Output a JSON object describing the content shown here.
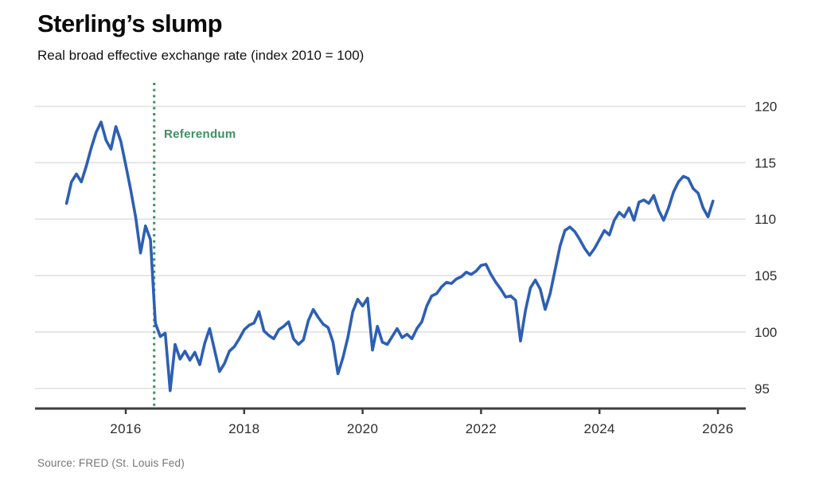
{
  "header": {
    "title": "Sterling’s slump",
    "subtitle": "Real broad effective exchange rate (index 2010 = 100)"
  },
  "source": {
    "text": "Source: FRED (St. Louis Fed)"
  },
  "chart_data": {
    "type": "line",
    "title": "Sterling’s slump",
    "subtitle": "Real broad effective exchange rate (index 2010 = 100)",
    "frequency": "monthly",
    "start_year": 2015,
    "start_month": 1,
    "end_year": 2025,
    "end_month": 12,
    "series": [
      {
        "name": "Real broad effective exchange rate (index 2010 = 100)",
        "values": [
          111.4,
          113.3,
          114.0,
          113.3,
          114.7,
          116.3,
          117.7,
          118.6,
          117.0,
          116.2,
          118.2,
          116.9,
          114.8,
          112.6,
          110.2,
          107.0,
          109.4,
          108.2,
          100.8,
          99.6,
          99.9,
          94.8,
          98.9,
          97.6,
          98.3,
          97.5,
          98.2,
          97.1,
          99.0,
          100.3,
          98.4,
          96.5,
          97.2,
          98.3,
          98.7,
          99.4,
          100.2,
          100.6,
          100.8,
          101.8,
          100.1,
          99.7,
          99.4,
          100.2,
          100.5,
          100.9,
          99.4,
          98.9,
          99.3,
          101.0,
          102.0,
          101.3,
          100.7,
          100.4,
          99.1,
          96.3,
          97.7,
          99.5,
          101.8,
          102.9,
          102.3,
          103.0,
          98.4,
          100.5,
          99.1,
          98.9,
          99.6,
          100.3,
          99.5,
          99.8,
          99.4,
          100.3,
          100.9,
          102.3,
          103.2,
          103.4,
          104.0,
          104.4,
          104.3,
          104.7,
          104.9,
          105.3,
          105.1,
          105.4,
          105.9,
          106.0,
          105.1,
          104.4,
          103.8,
          103.1,
          103.2,
          102.8,
          99.2,
          101.9,
          103.9,
          104.6,
          103.8,
          102.0,
          103.4,
          105.5,
          107.6,
          109.0,
          109.3,
          108.9,
          108.2,
          107.4,
          106.8,
          107.4,
          108.2,
          109.0,
          108.6,
          109.9,
          110.6,
          110.2,
          111.0,
          109.9,
          111.5,
          111.7,
          111.4,
          112.1,
          110.8,
          109.9,
          111.0,
          112.4,
          113.3,
          113.8,
          113.6,
          112.7,
          112.3,
          111.0,
          110.2,
          111.6
        ]
      }
    ],
    "x_ticks": [
      2016,
      2018,
      2020,
      2022,
      2024,
      2026
    ],
    "y_ticks": [
      95,
      100,
      105,
      110,
      115,
      120
    ],
    "ylim": [
      93.5,
      121.5
    ],
    "y_axis_position": "right",
    "grid": "horizontal",
    "annotation": {
      "label": "Referendum",
      "x_year": 2016.48
    },
    "colors": {
      "line": "#2d5fb4",
      "annotation": "#3f8f63",
      "grid": "#e0e0e0",
      "axis": "#3f3f3f",
      "tick_label": "#2e2e2e"
    }
  }
}
